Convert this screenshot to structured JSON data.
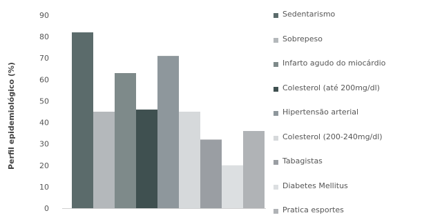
{
  "chart_data": {
    "type": "bar",
    "title": "",
    "xlabel": "",
    "ylabel": "Perfil epidemiológico (%)",
    "ylim": [
      0,
      90
    ],
    "yticks": [
      0,
      10,
      20,
      30,
      40,
      50,
      60,
      70,
      80,
      90
    ],
    "grid": false,
    "legend_position": "right",
    "series": [
      {
        "name": "Sedentarismo",
        "value": 82,
        "color": "#5b6b6b"
      },
      {
        "name": "Sobrepeso",
        "value": 45,
        "color": "#b4b8bb"
      },
      {
        "name": "Infarto agudo do miocárdio",
        "value": 63,
        "color": "#7e8a8a"
      },
      {
        "name": "Colesterol (até 200mg/dl)",
        "value": 46,
        "color": "#3f5050"
      },
      {
        "name": "Hipertensão arterial",
        "value": 71,
        "color": "#8e979c"
      },
      {
        "name": "Colesterol (200-240mg/dl)",
        "value": 45,
        "color": "#d6d9db"
      },
      {
        "name": "Tabagistas",
        "value": 32,
        "color": "#9a9ea3"
      },
      {
        "name": "Diabetes Mellitus",
        "value": 20,
        "color": "#dcdfe1"
      },
      {
        "name": "Pratica esportes",
        "value": 36,
        "color": "#b0b3b6"
      }
    ]
  }
}
